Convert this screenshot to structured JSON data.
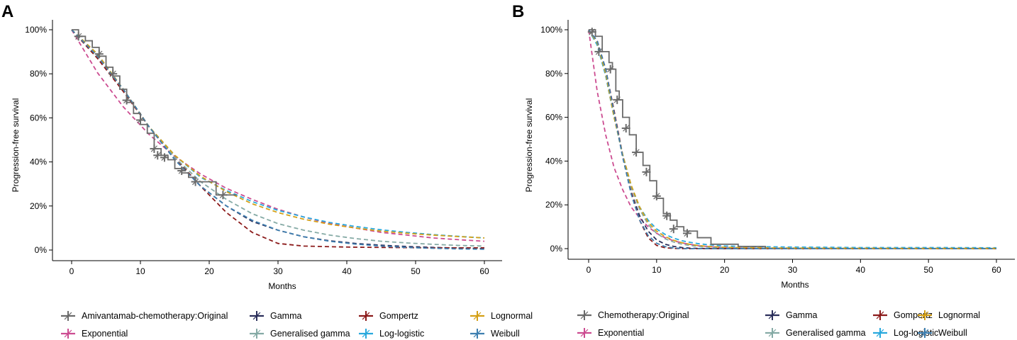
{
  "chart_data": [
    {
      "panel": "A",
      "type": "line",
      "xlabel": "Months",
      "ylabel": "Progression-free survival",
      "xlim": [
        0,
        60
      ],
      "ylim": [
        0,
        1
      ],
      "xticks": [
        0,
        10,
        20,
        30,
        40,
        50,
        60
      ],
      "xtick_labels": [
        "0",
        "10",
        "20",
        "30",
        "40",
        "50",
        "60"
      ],
      "yticks": [
        0,
        0.2,
        0.4,
        0.6,
        0.8,
        1.0
      ],
      "ytick_labels": [
        "0%",
        "20%",
        "40%",
        "60%",
        "80%",
        "100%"
      ],
      "km": {
        "name": "Amivantamab-chemotherapy:Original",
        "steps": [
          [
            0,
            1.0
          ],
          [
            1,
            0.97
          ],
          [
            2,
            0.95
          ],
          [
            3,
            0.92
          ],
          [
            4,
            0.88
          ],
          [
            5,
            0.83
          ],
          [
            6,
            0.79
          ],
          [
            7,
            0.73
          ],
          [
            8,
            0.67
          ],
          [
            9,
            0.62
          ],
          [
            10,
            0.57
          ],
          [
            11,
            0.53
          ],
          [
            12,
            0.46
          ],
          [
            13,
            0.43
          ],
          [
            14,
            0.41
          ],
          [
            15,
            0.37
          ],
          [
            16,
            0.35
          ],
          [
            17,
            0.33
          ],
          [
            18,
            0.31
          ],
          [
            21,
            0.25
          ],
          [
            24,
            0.25
          ]
        ],
        "censor": [
          [
            1,
            0.97
          ],
          [
            4,
            0.89
          ],
          [
            6,
            0.8
          ],
          [
            8,
            0.68
          ],
          [
            10,
            0.59
          ],
          [
            12,
            0.46
          ],
          [
            12.5,
            0.43
          ],
          [
            13.5,
            0.42
          ],
          [
            16,
            0.36
          ],
          [
            18,
            0.31
          ],
          [
            22,
            0.25
          ]
        ]
      },
      "series": [
        {
          "name": "Exponential",
          "color": "#cc4c91",
          "values": [
            1.0,
            0.805,
            0.65,
            0.525,
            0.425,
            0.345,
            0.28,
            0.23,
            0.185,
            0.15,
            0.12,
            0.1,
            0.08,
            0.068,
            0.055,
            0.047,
            0.04
          ]
        },
        {
          "name": "Gamma",
          "color": "#2b2f5b",
          "values": [
            1.0,
            0.88,
            0.73,
            0.56,
            0.41,
            0.29,
            0.2,
            0.13,
            0.09,
            0.06,
            0.042,
            0.03,
            0.022,
            0.016,
            0.012,
            0.009,
            0.007
          ]
        },
        {
          "name": "Gompertz",
          "color": "#8b1a1a",
          "values": [
            1.0,
            0.87,
            0.72,
            0.56,
            0.42,
            0.29,
            0.17,
            0.08,
            0.03,
            0.018,
            0.015,
            0.013,
            0.012,
            0.011,
            0.01,
            0.01,
            0.01
          ]
        },
        {
          "name": "Generalised gamma",
          "color": "#85aaa5",
          "values": [
            1.0,
            0.88,
            0.73,
            0.56,
            0.42,
            0.31,
            0.23,
            0.165,
            0.12,
            0.09,
            0.068,
            0.052,
            0.04,
            0.032,
            0.026,
            0.021,
            0.018
          ]
        },
        {
          "name": "Log-logistic",
          "color": "#29a9dd",
          "values": [
            1.0,
            0.89,
            0.73,
            0.56,
            0.43,
            0.33,
            0.27,
            0.22,
            0.18,
            0.15,
            0.125,
            0.107,
            0.092,
            0.08,
            0.07,
            0.062,
            0.055
          ]
        },
        {
          "name": "Lognormal",
          "color": "#d4a017",
          "values": [
            1.0,
            0.89,
            0.73,
            0.56,
            0.43,
            0.335,
            0.265,
            0.21,
            0.17,
            0.14,
            0.117,
            0.1,
            0.086,
            0.076,
            0.068,
            0.061,
            0.055
          ]
        },
        {
          "name": "Weibull",
          "color": "#3e7fb0",
          "values": [
            1.0,
            0.88,
            0.73,
            0.56,
            0.41,
            0.29,
            0.2,
            0.135,
            0.09,
            0.06,
            0.04,
            0.027,
            0.018,
            0.012,
            0.008,
            0.005,
            0.004
          ]
        }
      ],
      "series_x": [
        0,
        3.75,
        7.5,
        11.25,
        15,
        18.75,
        22.5,
        26.25,
        30,
        33.75,
        37.5,
        41.25,
        45,
        48.75,
        52.5,
        56.25,
        60
      ]
    },
    {
      "panel": "B",
      "type": "line",
      "xlabel": "Months",
      "ylabel": "Progression-free survival",
      "xlim": [
        0,
        60
      ],
      "ylim": [
        0,
        1
      ],
      "xticks": [
        0,
        10,
        20,
        30,
        40,
        50,
        60
      ],
      "xtick_labels": [
        "0",
        "10",
        "20",
        "30",
        "40",
        "50",
        "60"
      ],
      "yticks": [
        0,
        0.2,
        0.4,
        0.6,
        0.8,
        1.0
      ],
      "ytick_labels": [
        "0%",
        "20%",
        "40%",
        "60%",
        "80%",
        "100%"
      ],
      "km": {
        "name": "Chemotherapy:Original",
        "steps": [
          [
            0,
            1.0
          ],
          [
            1,
            0.97
          ],
          [
            2,
            0.9
          ],
          [
            3,
            0.85
          ],
          [
            3.5,
            0.82
          ],
          [
            4,
            0.72
          ],
          [
            4.5,
            0.68
          ],
          [
            5,
            0.6
          ],
          [
            6,
            0.52
          ],
          [
            7,
            0.44
          ],
          [
            8,
            0.38
          ],
          [
            9,
            0.31
          ],
          [
            10,
            0.23
          ],
          [
            11,
            0.16
          ],
          [
            12,
            0.13
          ],
          [
            13,
            0.1
          ],
          [
            14,
            0.08
          ],
          [
            16,
            0.05
          ],
          [
            18,
            0.02
          ],
          [
            22,
            0.01
          ],
          [
            26,
            0.0
          ]
        ],
        "censor": [
          [
            0.5,
            0.99
          ],
          [
            1.5,
            0.9
          ],
          [
            3.2,
            0.82
          ],
          [
            4.2,
            0.68
          ],
          [
            5.5,
            0.55
          ],
          [
            7,
            0.44
          ],
          [
            8.5,
            0.35
          ],
          [
            10,
            0.24
          ],
          [
            11.5,
            0.15
          ],
          [
            12.5,
            0.09
          ],
          [
            14.5,
            0.07
          ]
        ]
      },
      "series": [
        {
          "name": "Exponential",
          "color": "#cc4c91",
          "values": [
            1.0,
            0.72,
            0.52,
            0.37,
            0.27,
            0.19,
            0.14,
            0.1,
            0.07,
            0.05,
            0.036,
            0.026,
            0.019,
            0.013,
            0.01,
            0.007,
            0.005,
            0.003,
            0.002,
            0.0015,
            0.001,
            0.0005,
            0.0003,
            0.0002,
            0.0001
          ]
        },
        {
          "name": "Gamma",
          "color": "#2b2f5b",
          "values": [
            1.0,
            0.95,
            0.82,
            0.62,
            0.42,
            0.26,
            0.15,
            0.08,
            0.04,
            0.02,
            0.01,
            0.005,
            0.002,
            0.001,
            0.0005,
            0.0002,
            0.0001,
            0,
            0,
            0,
            0,
            0,
            0,
            0,
            0
          ]
        },
        {
          "name": "Gompertz",
          "color": "#8b1a1a",
          "values": [
            1.0,
            0.95,
            0.82,
            0.63,
            0.43,
            0.26,
            0.13,
            0.05,
            0.015,
            0.004,
            0.001,
            0,
            0,
            0,
            0,
            0,
            0,
            0,
            0,
            0,
            0,
            0,
            0,
            0,
            0
          ]
        },
        {
          "name": "Generalised gamma",
          "color": "#85aaa5",
          "values": [
            1.0,
            0.94,
            0.8,
            0.61,
            0.43,
            0.28,
            0.18,
            0.11,
            0.07,
            0.045,
            0.03,
            0.02,
            0.014,
            0.01,
            0.007,
            0.005,
            0.004,
            0.003,
            0.002,
            0.0015,
            0.001,
            0.001,
            0.0008,
            0.0006,
            0.0005
          ]
        },
        {
          "name": "Log-logistic",
          "color": "#29a9dd",
          "values": [
            1.0,
            0.93,
            0.79,
            0.6,
            0.43,
            0.29,
            0.19,
            0.13,
            0.09,
            0.065,
            0.048,
            0.036,
            0.028,
            0.022,
            0.018,
            0.015,
            0.012,
            0.01,
            0.009,
            0.008,
            0.007,
            0.006,
            0.005,
            0.005,
            0.004
          ]
        },
        {
          "name": "Lognormal",
          "color": "#d4a017",
          "values": [
            1.0,
            0.94,
            0.8,
            0.6,
            0.43,
            0.29,
            0.19,
            0.12,
            0.08,
            0.055,
            0.038,
            0.027,
            0.019,
            0.014,
            0.01,
            0.008,
            0.006,
            0.005,
            0.004,
            0.003,
            0.0025,
            0.002,
            0.0015,
            0.001,
            0.001
          ]
        },
        {
          "name": "Weibull",
          "color": "#3e7fb0",
          "values": [
            1.0,
            0.95,
            0.82,
            0.62,
            0.42,
            0.25,
            0.13,
            0.06,
            0.025,
            0.009,
            0.003,
            0.001,
            0,
            0,
            0,
            0,
            0,
            0,
            0,
            0,
            0,
            0,
            0,
            0,
            0
          ]
        }
      ],
      "series_x": [
        0,
        1.25,
        2.5,
        3.75,
        5,
        6.25,
        7.5,
        8.75,
        10,
        11.25,
        12.5,
        13.75,
        15,
        16.25,
        17.5,
        18.75,
        20,
        22.5,
        25,
        27.5,
        30,
        35,
        40,
        50,
        60
      ]
    }
  ],
  "km_color": "#6b6b6b",
  "legend_rows": [
    {
      "km_key": true,
      "items": [
        "Amivantamab-chemotherapy:Original",
        "Gamma",
        "Gompertz",
        "Lognormal"
      ]
    },
    {
      "km_key": false,
      "items": [
        "Exponential",
        "Generalised gamma",
        "Log-logistic",
        "Weibull"
      ]
    }
  ],
  "legend_rows_b": [
    {
      "items": [
        "Chemotherapy:Original",
        "Gamma",
        "Gompertz",
        "Lognormal"
      ]
    },
    {
      "items": [
        "Exponential",
        "Generalised gamma",
        "Log-logistic",
        "Weibull"
      ]
    }
  ]
}
